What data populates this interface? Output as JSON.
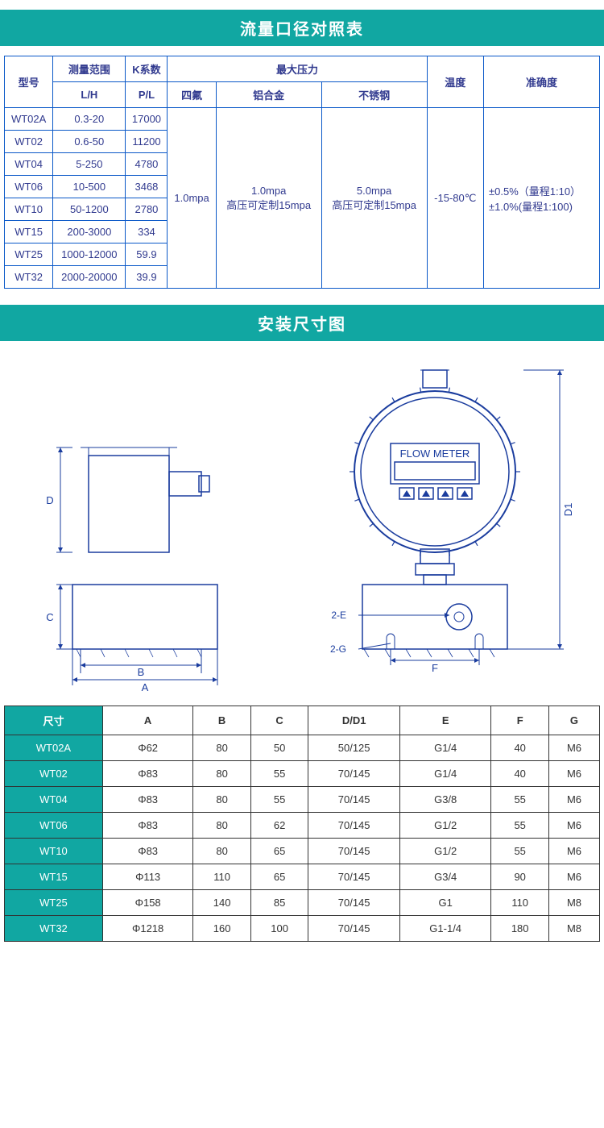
{
  "colors": {
    "teal": "#11a7a2",
    "table1_border": "#0a58c8",
    "table1_text": "#313a8f",
    "table2_border": "#333333",
    "diagram_stroke": "#1a3c9e",
    "white": "#ffffff"
  },
  "banner1": "流量口径对照表",
  "banner2": "安装尺寸图",
  "table1": {
    "headers": {
      "model": "型号",
      "range_group": "测量范围",
      "range_unit": "L/H",
      "k_group": "K系数",
      "k_unit": "P/L",
      "pressure_group": "最大压力",
      "p_sub1": "四氟",
      "p_sub2": "铝合金",
      "p_sub3": "不锈钢",
      "temp": "温度",
      "accuracy": "准确度"
    },
    "rows": [
      {
        "model": "WT02A",
        "range": "0.3-20",
        "k": "17000"
      },
      {
        "model": "WT02",
        "range": "0.6-50",
        "k": "11200"
      },
      {
        "model": "WT04",
        "range": "5-250",
        "k": "4780"
      },
      {
        "model": "WT06",
        "range": "10-500",
        "k": "3468"
      },
      {
        "model": "WT10",
        "range": "50-1200",
        "k": "2780"
      },
      {
        "model": "WT15",
        "range": "200-3000",
        "k": "334"
      },
      {
        "model": "WT25",
        "range": "1000-12000",
        "k": "59.9"
      },
      {
        "model": "WT32",
        "range": "2000-20000",
        "k": "39.9"
      }
    ],
    "merged": {
      "p1": "1.0mpa",
      "p2_a": "1.0mpa",
      "p2_b": "高压可定制15mpa",
      "p3_a": "5.0mpa",
      "p3_b": "高压可定制15mpa",
      "temp": "-15-80℃",
      "acc_a": "±0.5%（量程1:10）",
      "acc_b": "±1.0%(量程1:100)"
    }
  },
  "diagram": {
    "flow_meter_label": "FLOW METER",
    "labels": {
      "A": "A",
      "B": "B",
      "C": "C",
      "D": "D",
      "D1": "D1",
      "E2": "2-E",
      "F": "F",
      "G2": "2-G"
    }
  },
  "table2": {
    "headers": [
      "尺寸",
      "A",
      "B",
      "C",
      "D/D1",
      "E",
      "F",
      "G"
    ],
    "rows": [
      [
        "WT02A",
        "Φ62",
        "80",
        "50",
        "50/125",
        "G1/4",
        "40",
        "M6"
      ],
      [
        "WT02",
        "Φ83",
        "80",
        "55",
        "70/145",
        "G1/4",
        "40",
        "M6"
      ],
      [
        "WT04",
        "Φ83",
        "80",
        "55",
        "70/145",
        "G3/8",
        "55",
        "M6"
      ],
      [
        "WT06",
        "Φ83",
        "80",
        "62",
        "70/145",
        "G1/2",
        "55",
        "M6"
      ],
      [
        "WT10",
        "Φ83",
        "80",
        "65",
        "70/145",
        "G1/2",
        "55",
        "M6"
      ],
      [
        "WT15",
        "Φ113",
        "110",
        "65",
        "70/145",
        "G3/4",
        "90",
        "M6"
      ],
      [
        "WT25",
        "Φ158",
        "140",
        "85",
        "70/145",
        "G1",
        "110",
        "M8"
      ],
      [
        "WT32",
        "Φ1218",
        "160",
        "100",
        "70/145",
        "G1-1/4",
        "180",
        "M8"
      ]
    ]
  }
}
